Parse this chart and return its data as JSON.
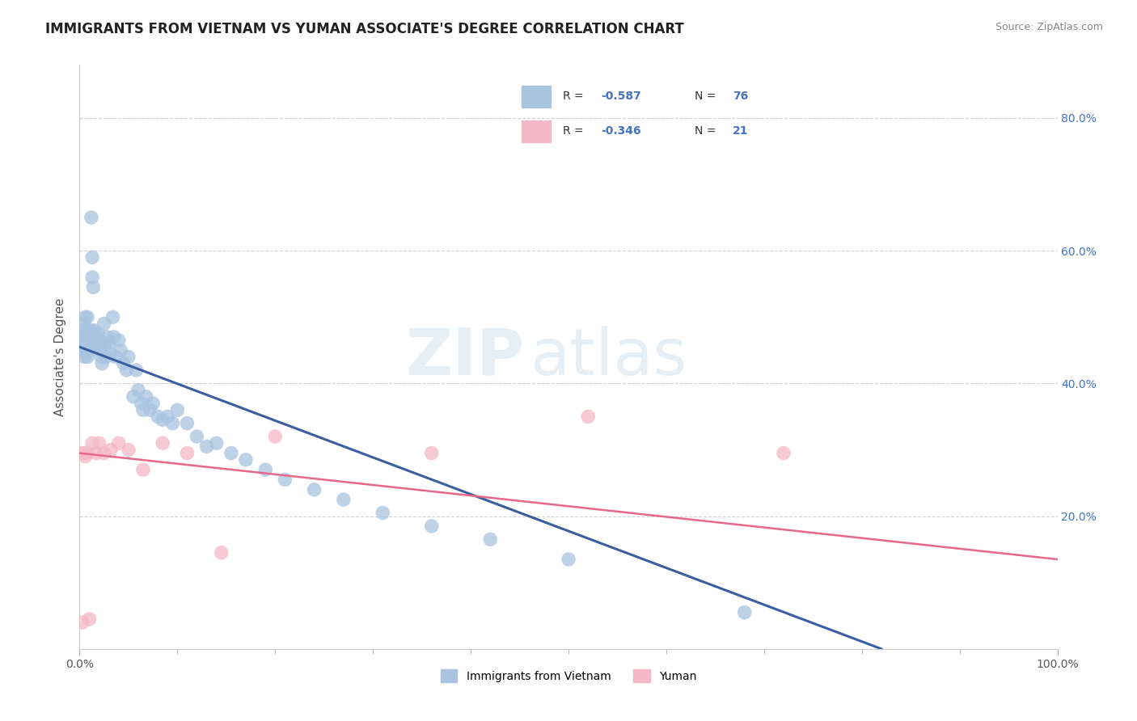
{
  "title": "IMMIGRANTS FROM VIETNAM VS YUMAN ASSOCIATE'S DEGREE CORRELATION CHART",
  "source": "Source: ZipAtlas.com",
  "ylabel": "Associate's Degree",
  "legend_label1": "Immigrants from Vietnam",
  "legend_label2": "Yuman",
  "legend_r1": "-0.587",
  "legend_n1": "76",
  "legend_r2": "-0.346",
  "legend_n2": "21",
  "watermark_zip": "ZIP",
  "watermark_atlas": "atlas",
  "blue_color": "#a8c4e0",
  "pink_color": "#f4b8c8",
  "blue_line_color": "#3a5fa0",
  "pink_line_color": "#e8688a",
  "xlim": [
    0.0,
    1.0
  ],
  "ylim": [
    0.0,
    0.88
  ],
  "blue_line_x0": 0.0,
  "blue_line_y0": 0.455,
  "blue_line_x1": 0.82,
  "blue_line_y1": 0.0,
  "pink_line_x0": 0.0,
  "pink_line_y0": 0.295,
  "pink_line_x1": 1.0,
  "pink_line_y1": 0.135,
  "title_fontsize": 12,
  "axis_label_fontsize": 11,
  "tick_fontsize": 10,
  "blue_scatter_x": [
    0.001,
    0.002,
    0.003,
    0.003,
    0.004,
    0.004,
    0.005,
    0.005,
    0.006,
    0.006,
    0.007,
    0.007,
    0.008,
    0.008,
    0.009,
    0.009,
    0.01,
    0.01,
    0.01,
    0.011,
    0.012,
    0.013,
    0.013,
    0.014,
    0.015,
    0.015,
    0.016,
    0.017,
    0.018,
    0.019,
    0.02,
    0.021,
    0.022,
    0.023,
    0.025,
    0.026,
    0.027,
    0.028,
    0.03,
    0.032,
    0.034,
    0.035,
    0.037,
    0.04,
    0.042,
    0.045,
    0.048,
    0.05,
    0.055,
    0.058,
    0.06,
    0.063,
    0.065,
    0.068,
    0.072,
    0.075,
    0.08,
    0.085,
    0.09,
    0.095,
    0.1,
    0.11,
    0.12,
    0.13,
    0.14,
    0.155,
    0.17,
    0.19,
    0.21,
    0.24,
    0.27,
    0.31,
    0.36,
    0.42,
    0.5,
    0.68
  ],
  "blue_scatter_y": [
    0.455,
    0.47,
    0.46,
    0.48,
    0.45,
    0.49,
    0.46,
    0.44,
    0.47,
    0.5,
    0.46,
    0.48,
    0.5,
    0.44,
    0.46,
    0.48,
    0.47,
    0.46,
    0.45,
    0.48,
    0.65,
    0.59,
    0.56,
    0.545,
    0.46,
    0.48,
    0.47,
    0.46,
    0.455,
    0.475,
    0.46,
    0.45,
    0.44,
    0.43,
    0.49,
    0.46,
    0.44,
    0.47,
    0.46,
    0.445,
    0.5,
    0.47,
    0.44,
    0.465,
    0.45,
    0.43,
    0.42,
    0.44,
    0.38,
    0.42,
    0.39,
    0.37,
    0.36,
    0.38,
    0.36,
    0.37,
    0.35,
    0.345,
    0.35,
    0.34,
    0.36,
    0.34,
    0.32,
    0.305,
    0.31,
    0.295,
    0.285,
    0.27,
    0.255,
    0.24,
    0.225,
    0.205,
    0.185,
    0.165,
    0.135,
    0.055
  ],
  "pink_scatter_x": [
    0.001,
    0.003,
    0.005,
    0.006,
    0.008,
    0.01,
    0.013,
    0.017,
    0.02,
    0.025,
    0.032,
    0.04,
    0.05,
    0.065,
    0.085,
    0.11,
    0.145,
    0.2,
    0.36,
    0.52,
    0.72
  ],
  "pink_scatter_y": [
    0.295,
    0.04,
    0.295,
    0.29,
    0.295,
    0.045,
    0.31,
    0.295,
    0.31,
    0.295,
    0.3,
    0.31,
    0.3,
    0.27,
    0.31,
    0.295,
    0.145,
    0.32,
    0.295,
    0.35,
    0.295
  ]
}
